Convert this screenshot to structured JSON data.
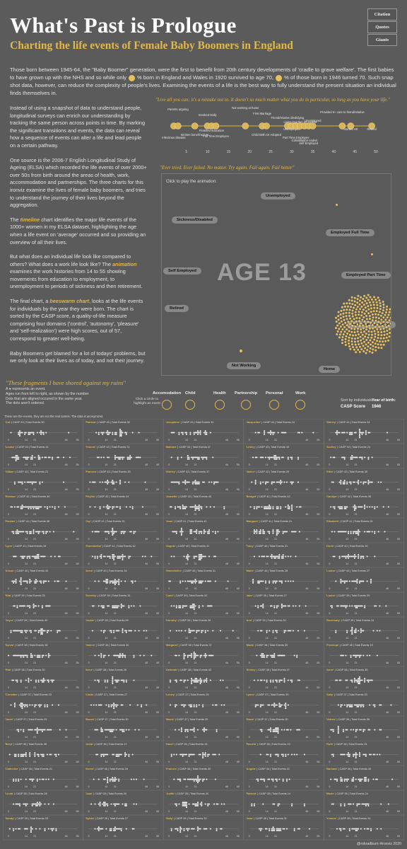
{
  "title": "What's Past is Prologue",
  "subtitle": "Charting the life events of Female Baby Boomers in England",
  "nav": [
    "Citation",
    "Quotes",
    "Giants"
  ],
  "intro": {
    "part1": "Those born between 1945-64, the \"Baby Boomer\" generation, were the first to benefit from 20th century developments of 'cradle to grave welfare'. The first babies to have grown up with the NHS and so while only",
    "part2": "% born in England and Wales in 1920 survived to age 70,",
    "part3": "% of those born in 1946 turned 70. Such snap shot data, however, can reduce the complexity of people's lives. Examining the events of a life is the best way to fully understand the present situation an individual finds themselves in."
  },
  "left_text": {
    "p1": "Instead of using a snapshot of data to understand people, longitudinal surveys can enrich our understanding by tracking the same person across points in time. By marking the significant transitions and events, the data can reveal how a sequence of events can alter a life and lead people on a certain pathway.",
    "p2": "One source is the 2006-7 English Longitudinal Study of Ageing (ELSA) which recorded the life events of over 2000+ over 50s from birth around the areas of health, work, accommodation and partnerships. The three charts for this ironviz examine the lives of female baby boomers, and tries to understand the journey of their lives beyond the aggregation.",
    "p3a": "The",
    "p3hl": "timeline",
    "p3b": "chart identifies the major life events of the 1000+ women in my ELSA dataset, highlighting the age when a life event on 'average' occurred and so providing an overview of all their lives.",
    "p4a": "But what does an individual life look like compared to others? What does a work life look like? The",
    "p4hl": "animation",
    "p4b": "examines the work histories from 14 to 55 showing movements from education to employment, to unemployment to periods of sickness and then retirement.",
    "p5a": "The final chart, a",
    "p5hl": "beeswarm chart",
    "p5b": ", looks at the life events for individuals by the year they were born. The chart is sorted by the CASP score, a quality-of-life measure comprising four domains ('control', 'autonomy', 'pleasure' and 'self-realization') were high scores, out of 57, correspond to greater well-being.",
    "p6": "Baby Boomers get blamed for a lot of todays' problems, but we only look at their lives as of today, and not their journey."
  },
  "quote1": "\"Live all you can; it's a mistake not to. It doesn't so much matter what you do in particular, so long as you have your life.\"",
  "quote2": "\"Ever tried. Ever failed. No matter. Try again. Fail again. Fail better\"",
  "quote3": "\"These fragments I have shored against my ruins\"",
  "chart_data": [
    {
      "type": "scatter",
      "x": [
        2,
        3,
        7,
        10,
        11,
        12,
        19,
        23,
        24,
        29,
        30,
        31,
        32,
        33,
        34,
        35,
        42,
        44,
        49
      ],
      "labels": [
        "Infectious disease",
        "Parents arguing",
        "Broken bone/fracture",
        "Smoked Daily",
        "Finished education",
        "Full Time Employee",
        "Not working at home",
        "First Marriage",
        "Child Birth Or Adopted",
        "Friend/relative died/dying",
        "Unemployed",
        "Part Time Employee",
        "Living together as couple",
        "Cohabitation ended",
        "Self Employed",
        "Unemployed",
        "Provided 6+ care to friend/relative",
        "Started Hrt",
        "Retired"
      ],
      "xticks": [
        5,
        10,
        15,
        20,
        25,
        30,
        35,
        40,
        45,
        50
      ],
      "xlim": [
        0,
        52
      ]
    },
    {
      "type": "scatter",
      "current_label": "AGE 13",
      "states": [
        "Unemployed",
        "Sickness/Disabled",
        "Employed Full Time",
        "Self Employed",
        "Employed Part Time",
        "Retired",
        "Full Time Education",
        "Not Working",
        "Home"
      ],
      "hint": "Click to play the animation:"
    },
    {
      "type": "scatter",
      "note": "These are the events, they are not the real names. The data is anonymized.",
      "xticks": [
        0,
        14,
        21,
        46,
        55
      ],
      "individuals": [
        {
          "name": "'Cat'",
          "casp": 43,
          "events": 30
        },
        {
          "name": "'Patricia'",
          "casp": 43,
          "events": 35
        },
        {
          "name": "'Josephine'",
          "casp": 43,
          "events": 31
        },
        {
          "name": "'Jacqueline'",
          "casp": 43,
          "events": 24
        },
        {
          "name": "'Shirley'",
          "casp": 43,
          "events": 34
        },
        {
          "name": "'Louise'",
          "casp": 43,
          "events": 41
        },
        {
          "name": "'Yvonne'",
          "casp": 43,
          "events": 31
        },
        {
          "name": "'Barbara'",
          "casp": 43,
          "events": 27
        },
        {
          "name": "'Lesley'",
          "casp": 43,
          "events": 33
        },
        {
          "name": "'Audrey'",
          "casp": 43,
          "events": 24
        },
        {
          "name": "'Gillian'",
          "casp": 43,
          "events": 21
        },
        {
          "name": "'Frances'",
          "casp": 43,
          "events": 25
        },
        {
          "name": "'Shirley'",
          "casp": 42,
          "events": 37
        },
        {
          "name": "'Janice'",
          "casp": 42,
          "events": 29
        },
        {
          "name": "'Ellen'",
          "casp": 42,
          "events": 35
        },
        {
          "name": "'Eleanor'",
          "casp": 42,
          "events": 40
        },
        {
          "name": "'Phyllis'",
          "casp": 42,
          "events": 24
        },
        {
          "name": "'Jeanette'",
          "casp": 42,
          "events": 40
        },
        {
          "name": "'Bridget'",
          "casp": 42,
          "events": 42
        },
        {
          "name": "'Carolyn'",
          "casp": 42,
          "events": 38
        },
        {
          "name": "'Pauline'",
          "casp": 41,
          "events": 38
        },
        {
          "name": "'Joy'",
          "casp": 41,
          "events": 31
        },
        {
          "name": "'Joan'",
          "casp": 41,
          "events": 41
        },
        {
          "name": "'Margaret'",
          "casp": 41,
          "events": 41
        },
        {
          "name": "'Elizabeth'",
          "casp": 41,
          "events": 34
        },
        {
          "name": "'Lynn'",
          "casp": 41,
          "events": 34
        },
        {
          "name": "'Gwendoline'",
          "casp": 41,
          "events": 42
        },
        {
          "name": "'Angela'",
          "casp": 40,
          "events": 31
        },
        {
          "name": "'Tracy'",
          "casp": 40,
          "events": 31
        },
        {
          "name": "'Doris'",
          "casp": 40,
          "events": 31
        },
        {
          "name": "'Alison'",
          "casp": 40,
          "events": 40
        },
        {
          "name": "'Anne'",
          "casp": 40,
          "events": 34
        },
        {
          "name": "'Gwendoline'",
          "casp": 40,
          "events": 31
        },
        {
          "name": "'Marie'",
          "casp": 40,
          "events": 28
        },
        {
          "name": "'Louise'",
          "casp": 40,
          "events": 27
        },
        {
          "name": "'Rita'",
          "casp": 39,
          "events": 25
        },
        {
          "name": "'Dorothy'",
          "casp": 39,
          "events": 31
        },
        {
          "name": "'Carol'",
          "casp": 39,
          "events": 32
        },
        {
          "name": "'Jane'",
          "casp": 39,
          "events": 27
        },
        {
          "name": "'Louise'",
          "casp": 39,
          "events": 29
        },
        {
          "name": "'Joyce'",
          "casp": 39,
          "events": 42
        },
        {
          "name": "'Jackie'",
          "casp": 39,
          "events": 26
        },
        {
          "name": "'Dorothy'",
          "casp": 39,
          "events": 26
        },
        {
          "name": "'Ann'",
          "casp": 39,
          "events": 20
        },
        {
          "name": "'Rosemary'",
          "casp": 39,
          "events": 24
        },
        {
          "name": "'Sylvia'",
          "casp": 38,
          "events": 36
        },
        {
          "name": "'Valerie'",
          "casp": 38,
          "events": 30
        },
        {
          "name": "'Margaret'",
          "casp": 38,
          "events": 37
        },
        {
          "name": "'Maria'",
          "casp": 38,
          "events": 30
        },
        {
          "name": "'Penelope'",
          "casp": 38,
          "events": 19
        },
        {
          "name": "'Rita'",
          "casp": 38,
          "events": 30
        },
        {
          "name": "'Irene'",
          "casp": 38,
          "events": 26
        },
        {
          "name": "'Deborah'",
          "casp": 38,
          "events": 42
        },
        {
          "name": "'Shirley'",
          "casp": 38,
          "events": 27
        },
        {
          "name": "'Anne'",
          "casp": 38,
          "events": 35
        },
        {
          "name": "'Christine'",
          "casp": 37,
          "events": 33
        },
        {
          "name": "'Linda'",
          "casp": 37,
          "events": 27
        },
        {
          "name": "'Lesley'",
          "casp": 37,
          "events": 26
        },
        {
          "name": "'Lynne'",
          "casp": 37,
          "events": 29
        },
        {
          "name": "'Sally'",
          "casp": 37,
          "events": 33
        },
        {
          "name": "'Janet'",
          "casp": 37,
          "events": 29
        },
        {
          "name": "'Naomi'",
          "casp": 37,
          "events": 30
        },
        {
          "name": "'Mavis'",
          "casp": 37,
          "events": 25
        },
        {
          "name": "'Diane'",
          "casp": 37,
          "events": 30
        },
        {
          "name": "'Valerie'",
          "casp": 36,
          "events": 28
        },
        {
          "name": "'Beryl'",
          "casp": 36,
          "events": 38
        },
        {
          "name": "'Anita'",
          "casp": 36,
          "events": 27
        },
        {
          "name": "'Hazel'",
          "casp": 36,
          "events": 34
        },
        {
          "name": "'Pamela'",
          "casp": 36,
          "events": 19
        },
        {
          "name": "'Ruth'",
          "casp": 36,
          "events": 34
        },
        {
          "name": "'Catherine'",
          "casp": 36,
          "events": 21
        },
        {
          "name": "'Karen'",
          "casp": 36,
          "events": 26
        },
        {
          "name": "'Frances'",
          "casp": 36,
          "events": 30
        },
        {
          "name": "'Angela'",
          "casp": 36,
          "events": 22
        },
        {
          "name": "'Barbara'",
          "casp": 36,
          "events": 40
        },
        {
          "name": "'Linda'",
          "casp": 35,
          "events": 28
        },
        {
          "name": "'Joan'",
          "casp": 35,
          "events": 30
        },
        {
          "name": "'Judith'",
          "casp": 35,
          "events": 40
        },
        {
          "name": "'Patricia'",
          "casp": 35,
          "events": 14
        },
        {
          "name": "'Marie'",
          "casp": 35,
          "events": 24
        },
        {
          "name": "'Sandy'",
          "casp": 35,
          "events": 25
        },
        {
          "name": "'Sylvia'",
          "casp": 35,
          "events": 27
        },
        {
          "name": "'Sally'",
          "casp": 35,
          "events": 33
        },
        {
          "name": "'Jean'",
          "casp": 35,
          "events": 31
        },
        {
          "name": "'Yvonne'",
          "casp": 35,
          "events": 24
        }
      ]
    }
  ],
  "anim_dots": {
    "count": 300
  },
  "legend": {
    "line1": "A ● represents an event.",
    "line2": "Ages run from left to right, as shown by the number",
    "line3": "Dots that are aligned occured in the same year.",
    "line4": "The dots aren't ordered.",
    "click_hint": "Click a circle to highlight an event"
  },
  "categories": [
    "Accomodation",
    "Child",
    "Health",
    "Partnership",
    "Personal",
    "Work"
  ],
  "sort": {
    "label": "Sort by individuals:",
    "value": "CASP Score"
  },
  "year": {
    "label": "Year of birth:",
    "value": "1946"
  },
  "credit": "@robradburn #ironviz 2020",
  "colors": {
    "accent": "#e2b84a",
    "background": "#5b5b5b",
    "dot": "#e8c15c"
  }
}
